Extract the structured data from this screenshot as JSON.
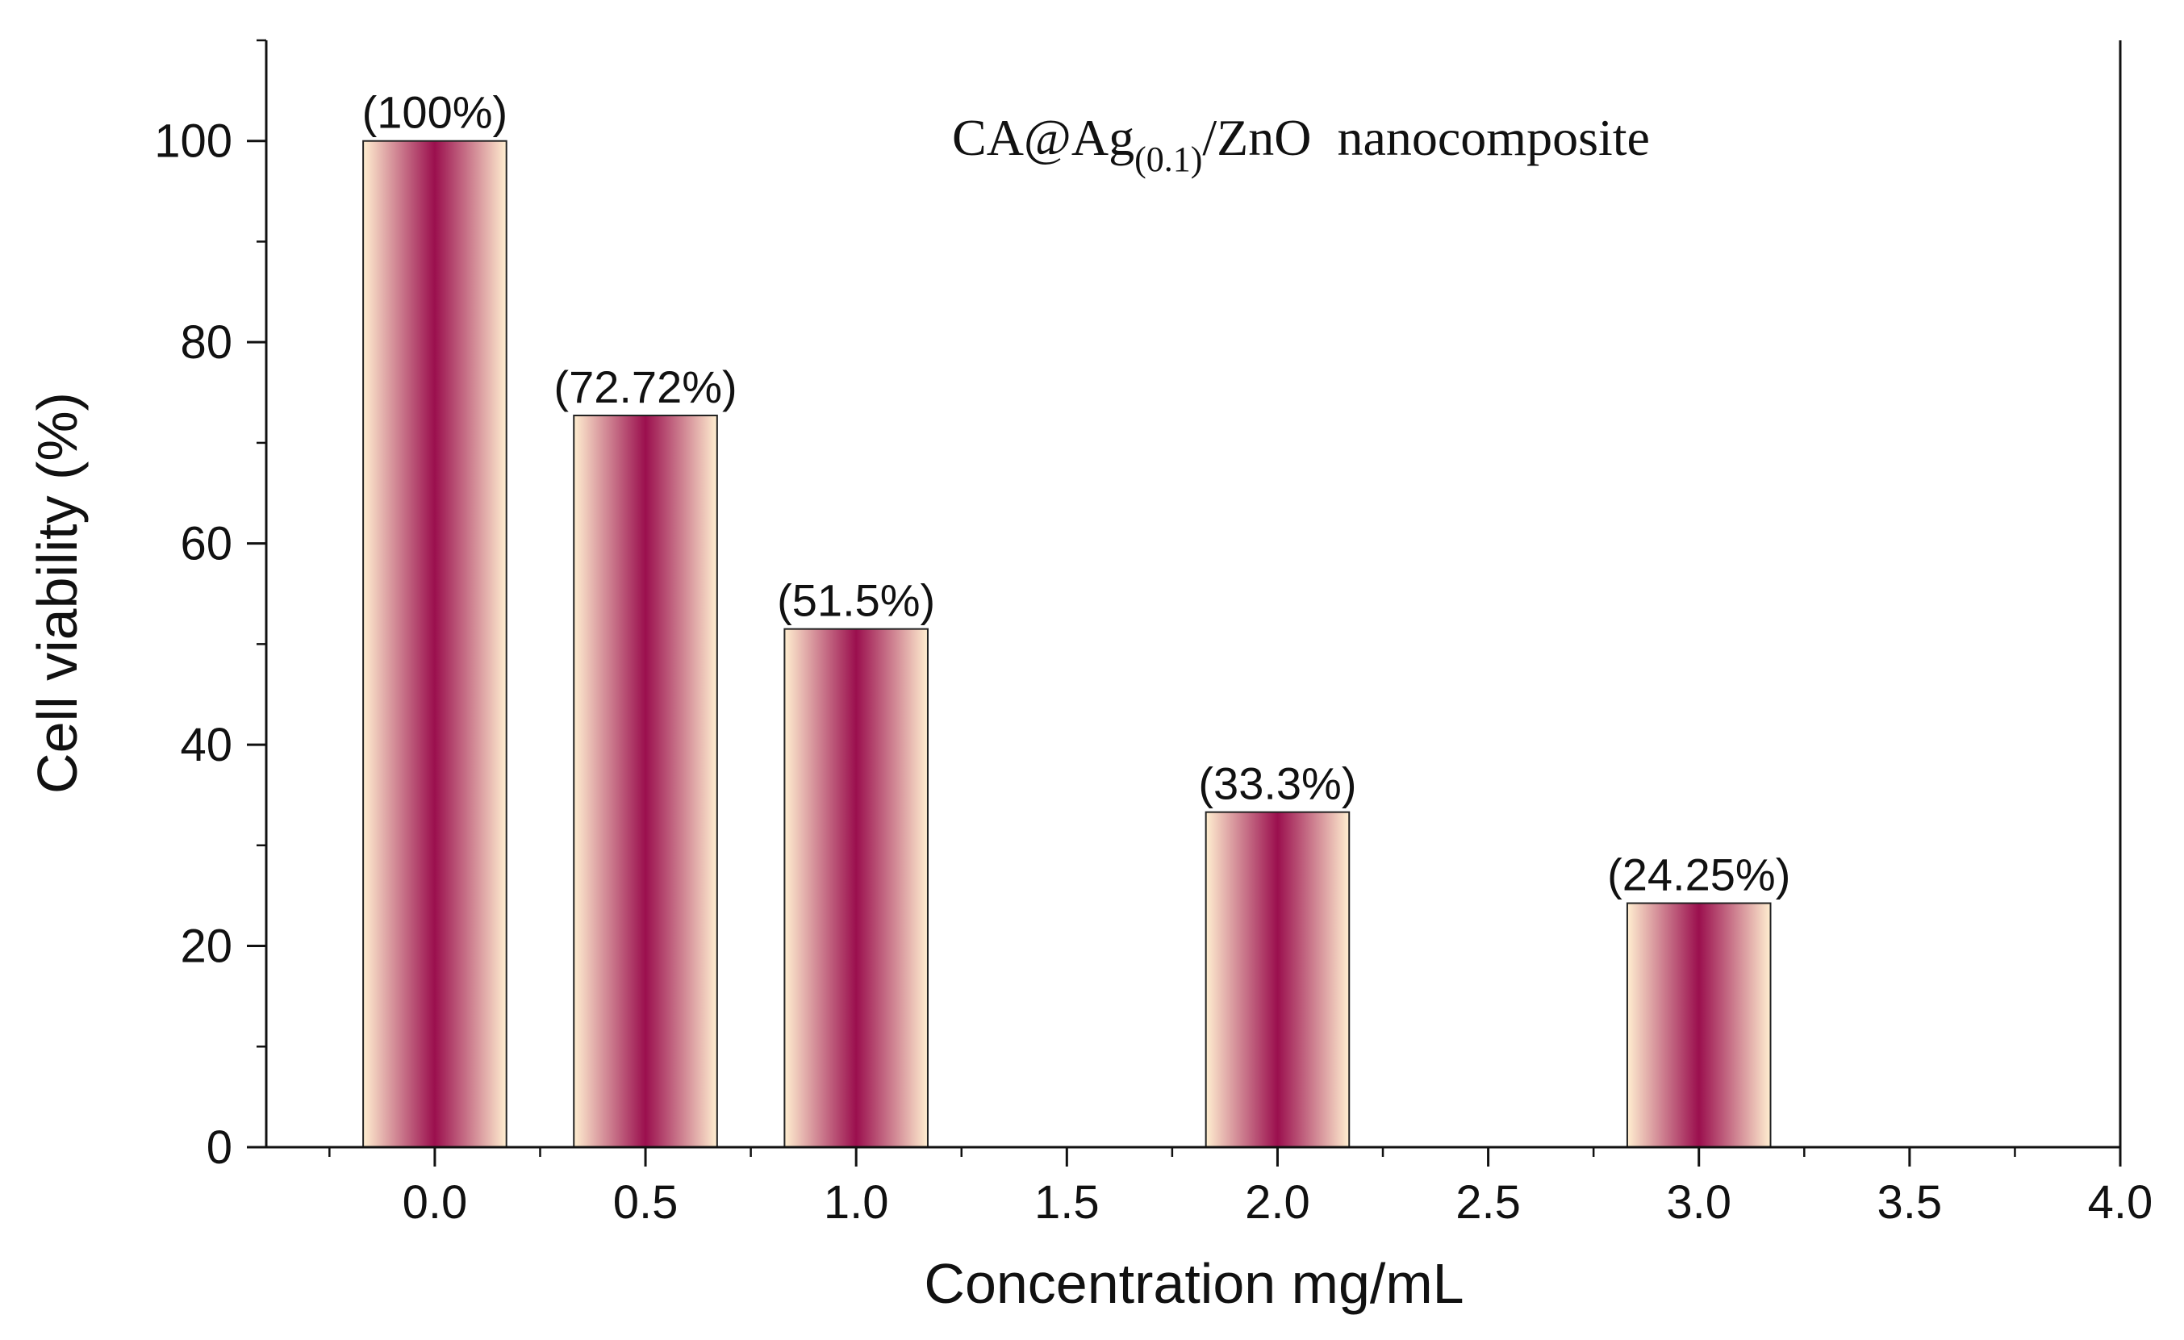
{
  "chart_data": {
    "type": "bar",
    "title": "",
    "xlabel": "Concentration mg/mL",
    "ylabel": "Cell viability (%)",
    "xlim": [
      -0.4,
      4.0
    ],
    "ylim": [
      0,
      110
    ],
    "grid": false,
    "x": [
      0.0,
      0.5,
      1.0,
      2.0,
      3.0
    ],
    "values": [
      100,
      72.72,
      51.5,
      33.3,
      24.25
    ],
    "data_labels": [
      "(100%)",
      "(72.72%)",
      "(51.5%)",
      "(33.3%)",
      "(24.25%)"
    ],
    "x_ticks": [
      0.0,
      0.5,
      1.0,
      1.5,
      2.0,
      2.5,
      3.0,
      3.5,
      4.0
    ],
    "x_tick_labels": [
      "0.0",
      "0.5",
      "1.0",
      "1.5",
      "2.0",
      "2.5",
      "3.0",
      "3.5",
      "4.0"
    ],
    "y_ticks": [
      0,
      20,
      40,
      60,
      80,
      100
    ],
    "y_tick_labels": [
      "0",
      "20",
      "40",
      "60",
      "80",
      "100"
    ],
    "bar_width": 0.34,
    "annotation": {
      "main": "CA@Ag",
      "subscript": "(0.1)",
      "slash": "/",
      "rest": "ZnO  nanocomposite"
    },
    "colors": {
      "bar_edge": "#ffeed0",
      "bar_center": "#9b0f4e",
      "bar_outline": "#222222",
      "axis": "#111111"
    }
  }
}
